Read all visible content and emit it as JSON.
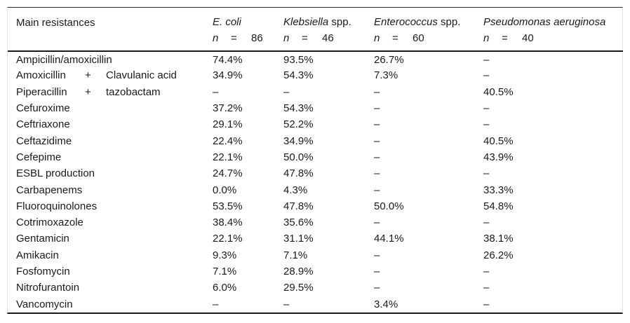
{
  "table": {
    "row_header_label": "Main resistances",
    "n_label": "n",
    "eq_sign": "=",
    "columns": [
      {
        "name_italic": "E. coli",
        "name_regular": "",
        "n": "86"
      },
      {
        "name_italic": "Klebsiella",
        "name_regular": " spp.",
        "n": "46"
      },
      {
        "name_italic": "Enterococcus",
        "name_regular": " spp.",
        "n": "60"
      },
      {
        "name_italic": "Pseudomonas aeruginosa",
        "name_regular": "",
        "n": "40"
      }
    ],
    "rows": [
      {
        "label": [
          "Ampicillin/amoxicillin"
        ],
        "values": [
          "74.4%",
          "93.5%",
          "26.7%",
          "–"
        ]
      },
      {
        "label": [
          "Amoxicillin",
          "+",
          "Clavulanic acid"
        ],
        "values": [
          "34.9%",
          "54.3%",
          "7.3%",
          "–"
        ]
      },
      {
        "label": [
          "Piperacillin",
          "+",
          "tazobactam"
        ],
        "values": [
          "–",
          "–",
          "–",
          "40.5%"
        ]
      },
      {
        "label": [
          "Cefuroxime"
        ],
        "values": [
          "37.2%",
          "54.3%",
          "–",
          "–"
        ]
      },
      {
        "label": [
          "Ceftriaxone"
        ],
        "values": [
          "29.1%",
          "52.2%",
          "–",
          "–"
        ]
      },
      {
        "label": [
          "Ceftazidime"
        ],
        "values": [
          "22.4%",
          "34.9%",
          "–",
          "40.5%"
        ]
      },
      {
        "label": [
          "Cefepime"
        ],
        "values": [
          "22.1%",
          "50.0%",
          "–",
          "43.9%"
        ]
      },
      {
        "label": [
          "ESBL production"
        ],
        "values": [
          "24.7%",
          "47.8%",
          "–",
          "–"
        ]
      },
      {
        "label": [
          "Carbapenems"
        ],
        "values": [
          "0.0%",
          "4.3%",
          "–",
          "33.3%"
        ]
      },
      {
        "label": [
          "Fluoroquinolones"
        ],
        "values": [
          "53.5%",
          "47.8%",
          "50.0%",
          "54.8%"
        ]
      },
      {
        "label": [
          "Cotrimoxazole"
        ],
        "values": [
          "38.4%",
          "35.6%",
          "–",
          "–"
        ]
      },
      {
        "label": [
          "Gentamicin"
        ],
        "values": [
          "22.1%",
          "31.1%",
          "44.1%",
          "38.1%"
        ]
      },
      {
        "label": [
          "Amikacin"
        ],
        "values": [
          "9.3%",
          "7.1%",
          "–",
          "26.2%"
        ]
      },
      {
        "label": [
          "Fosfomycin"
        ],
        "values": [
          "7.1%",
          "28.9%",
          "–",
          "–"
        ]
      },
      {
        "label": [
          "Nitrofurantoin"
        ],
        "values": [
          "6.0%",
          "29.5%",
          "–",
          "–"
        ]
      },
      {
        "label": [
          "Vancomycin"
        ],
        "values": [
          "–",
          "–",
          "3.4%",
          "–"
        ]
      }
    ]
  }
}
